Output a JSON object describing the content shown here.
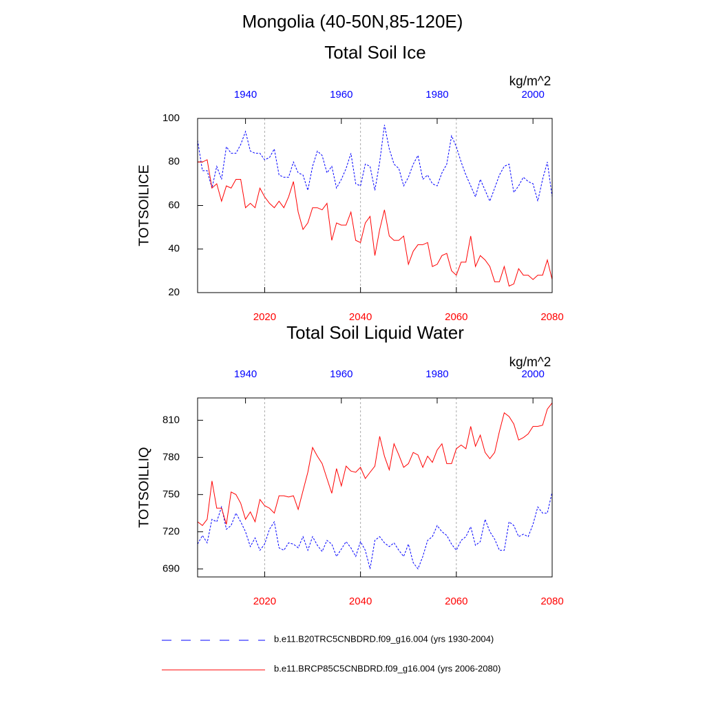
{
  "title": "Mongolia (40-50N,85-120E)",
  "chart_data": [
    {
      "type": "line",
      "title": "Total Soil Ice",
      "ylabel": "TOTSOILICE",
      "units": "kg/m^2",
      "xlim": [
        2006,
        2080
      ],
      "xticks": [
        2020,
        2040,
        2060,
        2080
      ],
      "x2lim": [
        1930,
        2004
      ],
      "x2ticks": [
        1940,
        1960,
        1980,
        2000
      ],
      "ylim": [
        20,
        100
      ],
      "yticks": [
        20,
        40,
        60,
        80,
        100
      ],
      "xgrid": true,
      "x": [
        2006,
        2007,
        2008,
        2009,
        2010,
        2011,
        2012,
        2013,
        2014,
        2015,
        2016,
        2017,
        2018,
        2019,
        2020,
        2021,
        2022,
        2023,
        2024,
        2025,
        2026,
        2027,
        2028,
        2029,
        2030,
        2031,
        2032,
        2033,
        2034,
        2035,
        2036,
        2037,
        2038,
        2039,
        2040,
        2041,
        2042,
        2043,
        2044,
        2045,
        2046,
        2047,
        2048,
        2049,
        2050,
        2051,
        2052,
        2053,
        2054,
        2055,
        2056,
        2057,
        2058,
        2059,
        2060,
        2061,
        2062,
        2063,
        2064,
        2065,
        2066,
        2067,
        2068,
        2069,
        2070,
        2071,
        2072,
        2073,
        2074,
        2075,
        2076,
        2077,
        2078,
        2079,
        2080
      ],
      "x2": [
        1930,
        1931,
        1932,
        1933,
        1934,
        1935,
        1936,
        1937,
        1938,
        1939,
        1940,
        1941,
        1942,
        1943,
        1944,
        1945,
        1946,
        1947,
        1948,
        1949,
        1950,
        1951,
        1952,
        1953,
        1954,
        1955,
        1956,
        1957,
        1958,
        1959,
        1960,
        1961,
        1962,
        1963,
        1964,
        1965,
        1966,
        1967,
        1968,
        1969,
        1970,
        1971,
        1972,
        1973,
        1974,
        1975,
        1976,
        1977,
        1978,
        1979,
        1980,
        1981,
        1982,
        1983,
        1984,
        1985,
        1986,
        1987,
        1988,
        1989,
        1990,
        1991,
        1992,
        1993,
        1994,
        1995,
        1996,
        1997,
        1998,
        1999,
        2000,
        2001,
        2002,
        2003,
        2004
      ],
      "series": [
        {
          "name": "b.e11.B20TRC5CNBDRD.f09_g16.004 (yrs 1930-2004)",
          "color": "#0000ff",
          "dash": true,
          "axis": "x2",
          "values": [
            90,
            76,
            76,
            68,
            78,
            72,
            87,
            84,
            84,
            88,
            94,
            85,
            84,
            84,
            81,
            82,
            86,
            74,
            73,
            73,
            80,
            75,
            74,
            67,
            78,
            85,
            83,
            75,
            78,
            68,
            72,
            77,
            84,
            70,
            69,
            79,
            78,
            67,
            80,
            97,
            86,
            79,
            77,
            69,
            73,
            79,
            83,
            72,
            74,
            70,
            69,
            75,
            79,
            92,
            87,
            80,
            74,
            69,
            64,
            72,
            67,
            62,
            68,
            74,
            78,
            79,
            66,
            69,
            73,
            71,
            70,
            62,
            72,
            80,
            64
          ]
        },
        {
          "name": "b.e11.BRCP85C5CNBDRD.f09_g16.004 (yrs 2006-2080)",
          "color": "#ff0000",
          "dash": false,
          "values": [
            80,
            80,
            81,
            68,
            70,
            62,
            69,
            68,
            72,
            72,
            59,
            61,
            59,
            68,
            64,
            61,
            59,
            62,
            59,
            64,
            71,
            57,
            49,
            52,
            59,
            59,
            58,
            61,
            44,
            52,
            51,
            51,
            57,
            44,
            43,
            52,
            55,
            37,
            49,
            58,
            46,
            44,
            44,
            46,
            33,
            39,
            42,
            42,
            43,
            32,
            33,
            37,
            38,
            30,
            28,
            34,
            34,
            46,
            32,
            37,
            35,
            32,
            25,
            25,
            32,
            23,
            24,
            31,
            28,
            28,
            26,
            28,
            28,
            35,
            26
          ]
        }
      ]
    },
    {
      "type": "line",
      "title": "Total Soil Liquid Water",
      "ylabel": "TOTSOILLIQ",
      "units": "kg/m^2",
      "xlim": [
        2006,
        2080
      ],
      "xticks": [
        2020,
        2040,
        2060,
        2080
      ],
      "x2lim": [
        1930,
        2004
      ],
      "x2ticks": [
        1940,
        1960,
        1980,
        2000
      ],
      "ylim": [
        683.5,
        828
      ],
      "yticks": [
        690,
        720,
        750,
        780,
        810
      ],
      "xgrid": true,
      "x": [
        2006,
        2007,
        2008,
        2009,
        2010,
        2011,
        2012,
        2013,
        2014,
        2015,
        2016,
        2017,
        2018,
        2019,
        2020,
        2021,
        2022,
        2023,
        2024,
        2025,
        2026,
        2027,
        2028,
        2029,
        2030,
        2031,
        2032,
        2033,
        2034,
        2035,
        2036,
        2037,
        2038,
        2039,
        2040,
        2041,
        2042,
        2043,
        2044,
        2045,
        2046,
        2047,
        2048,
        2049,
        2050,
        2051,
        2052,
        2053,
        2054,
        2055,
        2056,
        2057,
        2058,
        2059,
        2060,
        2061,
        2062,
        2063,
        2064,
        2065,
        2066,
        2067,
        2068,
        2069,
        2070,
        2071,
        2072,
        2073,
        2074,
        2075,
        2076,
        2077,
        2078,
        2079,
        2080
      ],
      "x2": [
        1930,
        1931,
        1932,
        1933,
        1934,
        1935,
        1936,
        1937,
        1938,
        1939,
        1940,
        1941,
        1942,
        1943,
        1944,
        1945,
        1946,
        1947,
        1948,
        1949,
        1950,
        1951,
        1952,
        1953,
        1954,
        1955,
        1956,
        1957,
        1958,
        1959,
        1960,
        1961,
        1962,
        1963,
        1964,
        1965,
        1966,
        1967,
        1968,
        1969,
        1970,
        1971,
        1972,
        1973,
        1974,
        1975,
        1976,
        1977,
        1978,
        1979,
        1980,
        1981,
        1982,
        1983,
        1984,
        1985,
        1986,
        1987,
        1988,
        1989,
        1990,
        1991,
        1992,
        1993,
        1994,
        1995,
        1996,
        1997,
        1998,
        1999,
        2000,
        2001,
        2002,
        2003,
        2004
      ],
      "series": [
        {
          "color": "#0000ff",
          "dash": true,
          "axis": "x2",
          "values": [
            710,
            717,
            711,
            730,
            728,
            740,
            722,
            725,
            735,
            728,
            720,
            708,
            715,
            705,
            710,
            722,
            728,
            707,
            705,
            711,
            710,
            707,
            716,
            705,
            716,
            709,
            704,
            713,
            710,
            700,
            706,
            712,
            707,
            700,
            712,
            705,
            690,
            713,
            716,
            711,
            708,
            711,
            705,
            700,
            710,
            695,
            690,
            700,
            713,
            716,
            725,
            720,
            717,
            710,
            705,
            713,
            716,
            724,
            709,
            712,
            730,
            720,
            714,
            705,
            705,
            728,
            725,
            716,
            718,
            716,
            726,
            740,
            735,
            735,
            752
          ]
        },
        {
          "color": "#ff0000",
          "dash": false,
          "values": [
            728,
            725,
            730,
            761,
            739,
            739,
            726,
            752,
            750,
            743,
            730,
            736,
            728,
            746,
            741,
            739,
            735,
            749,
            749,
            748,
            749,
            738,
            753,
            768,
            788,
            781,
            775,
            763,
            751,
            771,
            757,
            773,
            769,
            768,
            772,
            763,
            768,
            773,
            797,
            781,
            770,
            791,
            782,
            772,
            775,
            784,
            782,
            772,
            781,
            776,
            786,
            791,
            775,
            775,
            787,
            790,
            787,
            805,
            789,
            798,
            784,
            779,
            784,
            801,
            816,
            813,
            807,
            794,
            796,
            799,
            805,
            805,
            806,
            819,
            824
          ]
        }
      ]
    }
  ]
}
